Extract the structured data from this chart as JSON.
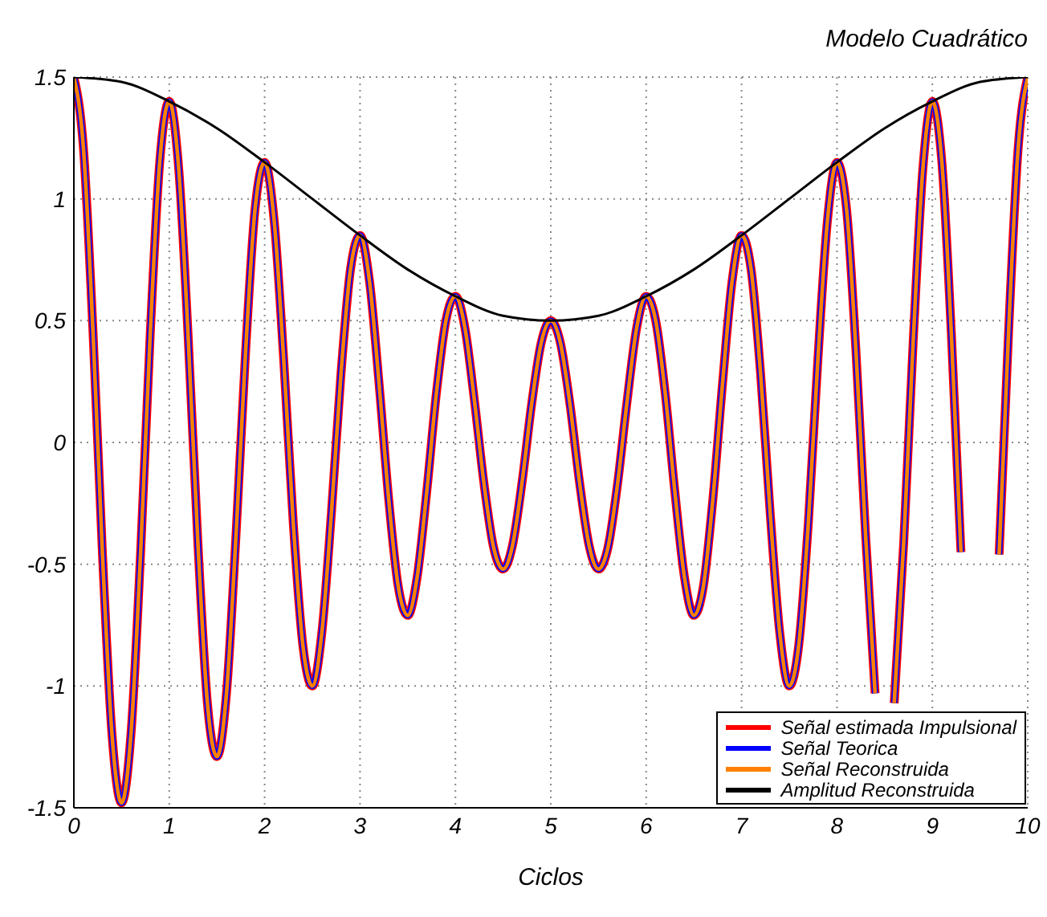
{
  "chart_data": {
    "type": "line",
    "title": "Modelo Cuadrático",
    "xlabel": "Ciclos",
    "x": [
      0,
      0.1,
      0.2,
      0.3,
      0.4,
      0.5,
      0.6,
      0.7,
      0.8,
      0.9,
      1,
      1.1,
      1.2,
      1.3,
      1.4,
      1.5,
      1.6,
      1.7,
      1.8,
      1.9,
      2,
      2.1,
      2.2,
      2.3,
      2.4,
      2.5,
      2.6,
      2.7,
      2.8,
      2.9,
      3,
      3.1,
      3.2,
      3.3,
      3.4,
      3.5,
      3.6,
      3.7,
      3.8,
      3.9,
      4,
      4.1,
      4.2,
      4.3,
      4.4,
      4.5,
      4.6,
      4.7,
      4.8,
      4.9,
      5,
      5.1,
      5.2,
      5.3,
      5.4,
      5.5,
      5.6,
      5.7,
      5.8,
      5.9,
      6,
      6.1,
      6.2,
      6.3,
      6.4,
      6.5,
      6.6,
      6.7,
      6.8,
      6.9,
      7,
      7.1,
      7.2,
      7.3,
      7.4,
      7.5,
      7.6,
      7.7,
      7.8,
      7.9,
      8,
      8.1,
      8.2,
      8.3,
      8.4,
      8.5,
      8.6,
      8.7,
      8.8,
      8.9,
      9,
      9.1,
      9.2,
      9.3,
      9.4,
      9.5,
      9.6,
      9.7,
      9.8,
      9.9,
      10
    ],
    "series": [
      {
        "name": "Señal estimada Impulsional",
        "color": "#ff0000",
        "values": [
          1.5,
          1.21,
          0.46,
          -0.46,
          -1.2,
          -1.48,
          -1.19,
          -0.45,
          0.44,
          1.15,
          1.4,
          1.12,
          0.42,
          -0.41,
          -1.07,
          -1.29,
          -1.03,
          -0.38,
          0.37,
          0.96,
          1.15,
          0.91,
          0.34,
          -0.33,
          -0.83,
          -1,
          -0.78,
          -0.29,
          0.28,
          0.71,
          0.85,
          0.66,
          0.24,
          -0.23,
          -0.59,
          -0.71,
          -0.55,
          -0.2,
          0.2,
          0.5,
          0.6,
          0.47,
          0.17,
          -0.17,
          -0.43,
          -0.52,
          -0.42,
          -0.16,
          0.16,
          0.41,
          0.5,
          0.41,
          0.16,
          -0.16,
          -0.42,
          -0.52,
          -0.43,
          -0.17,
          0.17,
          0.47,
          0.6,
          0.5,
          0.2,
          -0.2,
          -0.55,
          -0.71,
          -0.59,
          -0.23,
          0.24,
          0.66,
          0.85,
          0.71,
          0.28,
          -0.29,
          -0.78,
          -1,
          -0.83,
          -0.33,
          0.34,
          0.91,
          1.15,
          0.96,
          0.37,
          -0.38,
          -1.03,
          null,
          -1.07,
          -0.41,
          0.42,
          1.12,
          1.4,
          1.15,
          0.44,
          -0.45,
          null,
          null,
          null,
          -0.46,
          0.46,
          1.21,
          1.5
        ]
      },
      {
        "name": "Señal Teorica",
        "color": "#0000ff",
        "values": [
          1.5,
          1.21,
          0.46,
          -0.46,
          -1.2,
          -1.48,
          -1.19,
          -0.45,
          0.44,
          1.15,
          1.4,
          1.12,
          0.42,
          -0.41,
          -1.07,
          -1.29,
          -1.03,
          -0.38,
          0.37,
          0.96,
          1.15,
          0.91,
          0.34,
          -0.33,
          -0.83,
          -1,
          -0.78,
          -0.29,
          0.28,
          0.71,
          0.85,
          0.66,
          0.24,
          -0.23,
          -0.59,
          -0.71,
          -0.55,
          -0.2,
          0.2,
          0.5,
          0.6,
          0.47,
          0.17,
          -0.17,
          -0.43,
          -0.52,
          -0.42,
          -0.16,
          0.16,
          0.41,
          0.5,
          0.41,
          0.16,
          -0.16,
          -0.42,
          -0.52,
          -0.43,
          -0.17,
          0.17,
          0.47,
          0.6,
          0.5,
          0.2,
          -0.2,
          -0.55,
          -0.71,
          -0.59,
          -0.23,
          0.24,
          0.66,
          0.85,
          0.71,
          0.28,
          -0.29,
          -0.78,
          -1,
          -0.83,
          -0.33,
          0.34,
          0.91,
          1.15,
          0.96,
          0.37,
          -0.38,
          -1.03,
          null,
          -1.07,
          -0.41,
          0.42,
          1.12,
          1.4,
          1.15,
          0.44,
          -0.45,
          null,
          null,
          null,
          -0.46,
          0.46,
          1.21,
          1.5
        ]
      },
      {
        "name": "Señal Reconstruida",
        "color": "#ff8000",
        "values": [
          1.5,
          1.21,
          0.46,
          -0.46,
          -1.2,
          -1.48,
          -1.19,
          -0.45,
          0.44,
          1.15,
          1.4,
          1.12,
          0.42,
          -0.41,
          -1.07,
          -1.29,
          -1.03,
          -0.38,
          0.37,
          0.96,
          1.15,
          0.91,
          0.34,
          -0.33,
          -0.83,
          -1,
          -0.78,
          -0.29,
          0.28,
          0.71,
          0.85,
          0.66,
          0.24,
          -0.23,
          -0.59,
          -0.71,
          -0.55,
          -0.2,
          0.2,
          0.5,
          0.6,
          0.47,
          0.17,
          -0.17,
          -0.43,
          -0.52,
          -0.42,
          -0.16,
          0.16,
          0.41,
          0.5,
          0.41,
          0.16,
          -0.16,
          -0.42,
          -0.52,
          -0.43,
          -0.17,
          0.17,
          0.47,
          0.6,
          0.5,
          0.2,
          -0.2,
          -0.55,
          -0.71,
          -0.59,
          -0.23,
          0.24,
          0.66,
          0.85,
          0.71,
          0.28,
          -0.29,
          -0.78,
          -1,
          -0.83,
          -0.33,
          0.34,
          0.91,
          1.15,
          0.96,
          0.37,
          -0.38,
          -1.03,
          null,
          -1.07,
          -0.41,
          0.42,
          1.12,
          1.4,
          1.15,
          0.44,
          -0.45,
          null,
          null,
          null,
          -0.46,
          0.46,
          1.21,
          1.5
        ]
      },
      {
        "name": "Amplitud Reconstruida",
        "color": "#000000",
        "x": [
          0,
          0.5,
          1,
          1.5,
          2,
          2.5,
          3,
          3.5,
          4,
          4.5,
          5,
          5.5,
          6,
          6.5,
          7,
          7.5,
          8,
          8.5,
          9,
          9.5,
          10
        ],
        "values": [
          1.5,
          1.48,
          1.4,
          1.29,
          1.15,
          1,
          0.85,
          0.71,
          0.6,
          0.52,
          0.5,
          0.52,
          0.6,
          0.71,
          0.85,
          1,
          1.15,
          1.29,
          1.4,
          1.48,
          1.5
        ]
      }
    ],
    "xlim": [
      0,
      10
    ],
    "xticks": [
      0,
      1,
      2,
      3,
      4,
      5,
      6,
      7,
      8,
      9,
      10
    ],
    "ylim": [
      -1.5,
      1.5
    ],
    "yticks": [
      -1.5,
      -1,
      -0.5,
      0,
      0.5,
      1,
      1.5
    ],
    "grid": true,
    "legend": "bottom right"
  }
}
